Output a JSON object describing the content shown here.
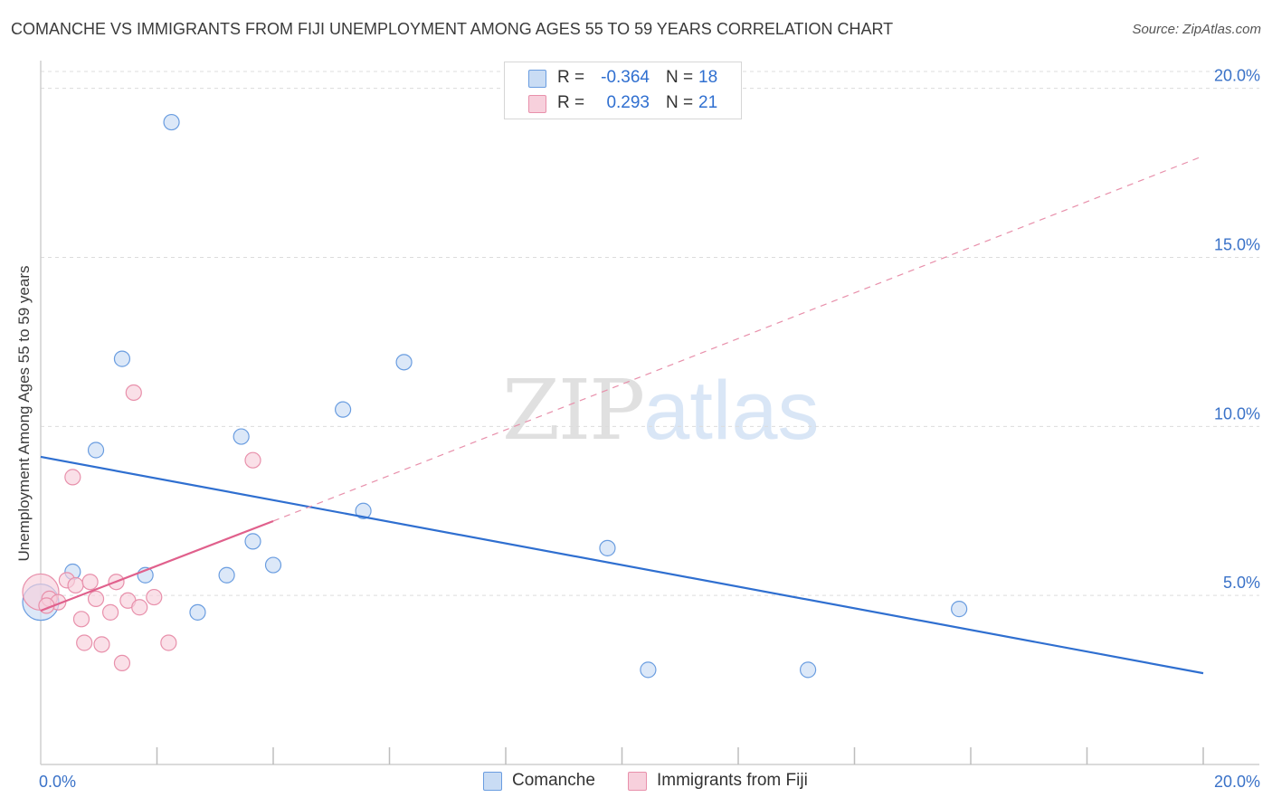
{
  "title": "COMANCHE VS IMMIGRANTS FROM FIJI UNEMPLOYMENT AMONG AGES 55 TO 59 YEARS CORRELATION CHART",
  "source": "Source: ZipAtlas.com",
  "watermark": {
    "zip": "ZIP",
    "atlas": "atlas"
  },
  "legend": {
    "comanche": {
      "r_label": "R =",
      "r_value": "-0.364",
      "n_label": "N =",
      "n_value": "18"
    },
    "fiji": {
      "r_label": "R =",
      "r_value": "0.293",
      "n_label": "N =",
      "n_value": "21"
    }
  },
  "chart_data": {
    "type": "scatter",
    "title": "COMANCHE VS IMMIGRANTS FROM FIJI UNEMPLOYMENT AMONG AGES 55 TO 59 YEARS CORRELATION CHART",
    "xlabel": "",
    "ylabel": "Unemployment Among Ages 55 to 59 years",
    "xlim": [
      0,
      20
    ],
    "ylim": [
      0,
      20.5
    ],
    "x_tick_labels": [
      "0.0%",
      "20.0%"
    ],
    "y_ticks": [
      5,
      10,
      15,
      20
    ],
    "y_tick_labels": [
      "5.0%",
      "10.0%",
      "15.0%",
      "20.0%"
    ],
    "grid": true,
    "legend_position": "top-center",
    "series": [
      {
        "name": "Comanche",
        "color": "#6a9de0",
        "fill": "#c9dcf4",
        "points": [
          {
            "x": 0.0,
            "y": 4.8,
            "big": true
          },
          {
            "x": 0.55,
            "y": 5.7
          },
          {
            "x": 0.95,
            "y": 9.3
          },
          {
            "x": 1.4,
            "y": 12.0
          },
          {
            "x": 1.8,
            "y": 5.6
          },
          {
            "x": 2.25,
            "y": 19.0
          },
          {
            "x": 2.7,
            "y": 4.5
          },
          {
            "x": 3.2,
            "y": 5.6
          },
          {
            "x": 3.45,
            "y": 9.7
          },
          {
            "x": 3.65,
            "y": 6.6
          },
          {
            "x": 4.0,
            "y": 5.9
          },
          {
            "x": 5.2,
            "y": 10.5
          },
          {
            "x": 5.55,
            "y": 7.5
          },
          {
            "x": 6.25,
            "y": 11.9
          },
          {
            "x": 9.75,
            "y": 6.4
          },
          {
            "x": 10.45,
            "y": 2.8
          },
          {
            "x": 13.2,
            "y": 2.8
          },
          {
            "x": 15.8,
            "y": 4.6
          }
        ],
        "trend": {
          "x": [
            0,
            20
          ],
          "y": [
            9.1,
            2.7
          ],
          "style": "solid"
        }
      },
      {
        "name": "Immigrants from Fiji",
        "color": "#e890ab",
        "fill": "#f7d0dc",
        "points": [
          {
            "x": 0.0,
            "y": 5.1,
            "big": true
          },
          {
            "x": 0.15,
            "y": 4.9
          },
          {
            "x": 0.3,
            "y": 4.8
          },
          {
            "x": 0.45,
            "y": 5.45
          },
          {
            "x": 0.55,
            "y": 8.5
          },
          {
            "x": 0.6,
            "y": 5.3
          },
          {
            "x": 0.7,
            "y": 4.3
          },
          {
            "x": 0.75,
            "y": 3.6
          },
          {
            "x": 0.85,
            "y": 5.4
          },
          {
            "x": 0.95,
            "y": 4.9
          },
          {
            "x": 1.05,
            "y": 3.55
          },
          {
            "x": 1.2,
            "y": 4.5
          },
          {
            "x": 1.3,
            "y": 5.4
          },
          {
            "x": 1.4,
            "y": 3.0
          },
          {
            "x": 1.5,
            "y": 4.85
          },
          {
            "x": 1.6,
            "y": 11.0
          },
          {
            "x": 1.7,
            "y": 4.65
          },
          {
            "x": 1.95,
            "y": 4.95
          },
          {
            "x": 2.2,
            "y": 3.6
          },
          {
            "x": 3.65,
            "y": 9.0
          },
          {
            "x": 0.1,
            "y": 4.7
          }
        ],
        "trend_solid": {
          "x": [
            0,
            4.0
          ],
          "y": [
            4.55,
            7.2
          ]
        },
        "trend_dashed": {
          "x": [
            4.0,
            20
          ],
          "y": [
            7.2,
            18.0
          ]
        }
      }
    ]
  }
}
